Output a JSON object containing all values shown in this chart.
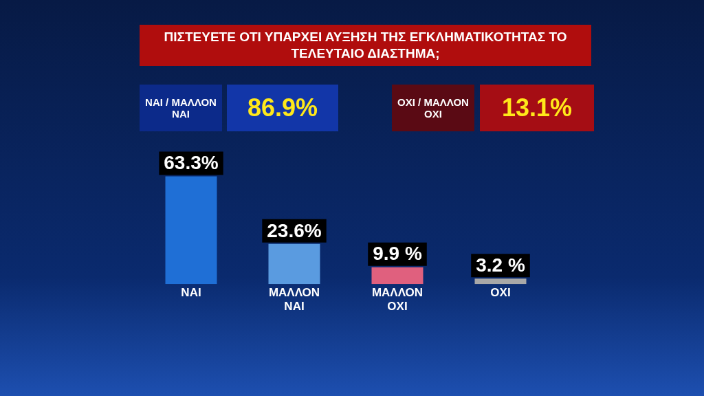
{
  "chart_data": {
    "type": "bar",
    "title": "ΠΙΣΤΕΥΕΤΕ ΟΤΙ ΥΠΑΡΧΕΙ ΑΥΞΗΣΗ ΤΗΣ ΕΓΚΛΗΜΑΤΙΚΟΤΗΤΑΣ ΤΟ ΤΕΛΕΥΤΑΙΟ ΔΙΑΣΤΗΜΑ;",
    "categories": [
      "ΝΑΙ",
      "ΜΑΛΛΟΝ ΝΑΙ",
      "ΜΑΛΛΟΝ ΟΧΙ",
      "ΟΧΙ"
    ],
    "values": [
      63.3,
      23.6,
      9.9,
      3.2
    ],
    "colors": [
      "#1f6fd6",
      "#5a9be0",
      "#e0607e",
      "#a8a8a8"
    ],
    "value_labels": [
      "63.3%",
      "23.6%",
      "9.9 %",
      "3.2 %"
    ],
    "annotations": [
      "ΝΑΙ / ΜΑΛΛΟΝ ΝΑΙ",
      "86.9%",
      "ΟΧΙ / ΜΑΛΛΟΝ ΟΧΙ",
      "13.1%"
    ],
    "grid": false,
    "legend": false
  }
}
